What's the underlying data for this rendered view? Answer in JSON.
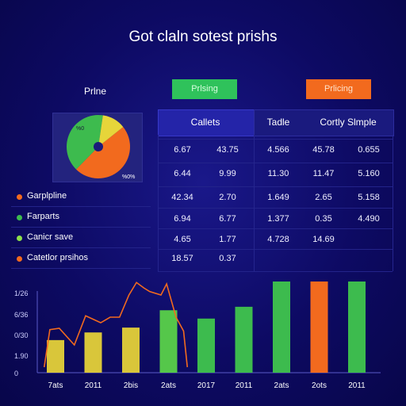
{
  "title": "Got claln sotest prishs",
  "prize_label": "Prlne",
  "pills": {
    "green": "Prlsing",
    "orange": "Prlicing"
  },
  "pie": {
    "labels": [
      "%0",
      "%0%"
    ],
    "slices": [
      {
        "value": 48,
        "color": "#f26a1e"
      },
      {
        "value": 40,
        "color": "#3dbb4e"
      },
      {
        "value": 12,
        "color": "#e6d53a"
      }
    ],
    "center_color": "#1a1a7a"
  },
  "table": {
    "headers": [
      "Callets",
      "Tadle",
      "Cortly Slmple"
    ],
    "rows": [
      [
        "6.67",
        "43.75",
        "4.566",
        "45.78",
        "0.655"
      ],
      [
        "6.44",
        "9.99",
        "11.30",
        "11.47",
        "5.160"
      ],
      [
        "42.34",
        "2.70",
        "1.649",
        "2.65",
        "5.158"
      ],
      [
        "6.94",
        "6.77",
        "1.377",
        "0.35",
        "4.490"
      ],
      [
        "4.65",
        "1.77",
        "4.728",
        "14.69",
        ""
      ],
      [
        "18.57",
        "0.37",
        "",
        "",
        ""
      ]
    ]
  },
  "legend": [
    {
      "label": "Garplpline",
      "color": "#f26a1e"
    },
    {
      "label": "Farparts",
      "color": "#3dbb4e"
    },
    {
      "label": "Canicr save",
      "color": "#8ee04a"
    },
    {
      "label": "Catetlor prsihos",
      "color": "#f26a1e"
    }
  ],
  "chart_data": {
    "type": "bar",
    "title": "",
    "categories": [
      "7ats",
      "2011",
      "2bis",
      "2ats",
      "2017",
      "2011",
      "2ats",
      "2ots",
      "2011"
    ],
    "values": [
      47,
      58,
      65,
      90,
      78,
      95,
      138,
      146,
      172
    ],
    "bar_colors": [
      "#d9c63a",
      "#d9c63a",
      "#d9c63a",
      "#55c74a",
      "#3dbb4e",
      "#3dbb4e",
      "#3dbb4e",
      "#f26a1e",
      "#3dbb4e"
    ],
    "line": {
      "name": "",
      "color": "#f26a1e",
      "values": [
        8,
        62,
        64,
        40,
        82,
        72,
        80,
        80,
        112,
        130,
        122,
        117,
        112,
        128,
        80,
        60,
        8
      ],
      "x": [
        0.2,
        0.35,
        0.6,
        1.0,
        1.3,
        1.7,
        1.95,
        2.2,
        2.45,
        2.65,
        2.85,
        3.0,
        3.3,
        3.45,
        3.7,
        3.9,
        4.0
      ]
    },
    "y_ticks": [
      "1/26",
      "6/36",
      "0/30",
      "1.90",
      "0"
    ],
    "ylim": [
      0,
      200
    ],
    "grid": false,
    "legend": "none"
  }
}
